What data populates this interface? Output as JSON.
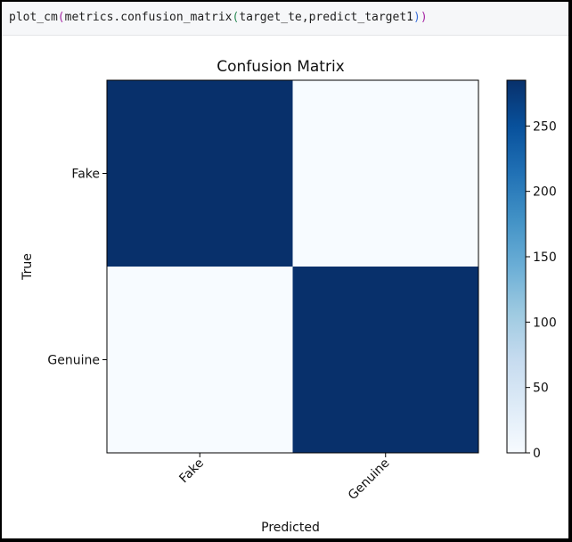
{
  "code": {
    "func": "plot_cm",
    "module": "metrics",
    "method": "confusion_matrix",
    "arg1": "target_te",
    "arg2": "predict_target1"
  },
  "chart_data": {
    "type": "heatmap",
    "title": "Confusion Matrix",
    "xlabel": "Predicted",
    "ylabel": "True",
    "x_categories": [
      "Fake",
      "Genuine"
    ],
    "y_categories": [
      "Fake",
      "Genuine"
    ],
    "matrix": [
      [
        285,
        0
      ],
      [
        0,
        285
      ]
    ],
    "colormap": "Blues",
    "colorbar_range": [
      0,
      285
    ],
    "colorbar_ticks": [
      0,
      50,
      100,
      150,
      200,
      250
    ],
    "colors": {
      "low": "#f7fbff",
      "high": "#08306b"
    },
    "grid": false,
    "xtick_rotation_deg": 45
  }
}
